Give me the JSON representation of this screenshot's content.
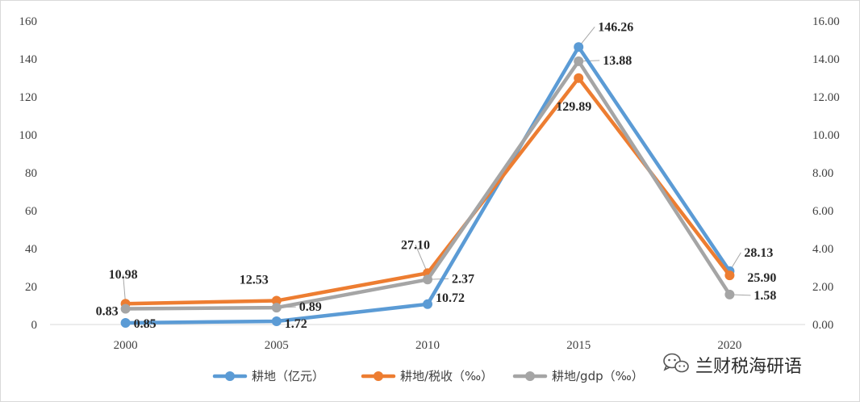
{
  "chart_data": {
    "type": "line",
    "categories": [
      "2000",
      "2005",
      "2010",
      "2015",
      "2020"
    ],
    "y_left": {
      "min": 0,
      "max": 160,
      "ticks": [
        "0",
        "20",
        "40",
        "60",
        "80",
        "100",
        "120",
        "140",
        "160"
      ]
    },
    "y_right": {
      "min": 0,
      "max": 16,
      "ticks": [
        "0.00",
        "2.00",
        "4.00",
        "6.00",
        "8.00",
        "10.00",
        "12.00",
        "14.00",
        "16.00"
      ]
    },
    "series": [
      {
        "name": "耕地（亿元）",
        "axis": "left",
        "color": "#5B9BD5",
        "values": [
          0.85,
          1.72,
          10.72,
          146.26,
          28.13
        ],
        "labels": [
          "0.85",
          "1.72",
          "10.72",
          "146.26",
          "28.13"
        ]
      },
      {
        "name": "耕地/税收（‰）",
        "axis": "left",
        "color": "#ED7D31",
        "values": [
          10.98,
          12.53,
          27.1,
          129.89,
          25.9
        ],
        "labels": [
          "10.98",
          "12.53",
          "27.10",
          "129.89",
          "25.90"
        ]
      },
      {
        "name": "耕地/gdp（‰）",
        "axis": "right",
        "color": "#A5A5A5",
        "values": [
          0.83,
          0.89,
          2.37,
          13.88,
          1.58
        ],
        "labels": [
          "0.83",
          "0.89",
          "2.37",
          "13.88",
          "1.58"
        ]
      }
    ],
    "legend_position": "bottom",
    "grid": false
  },
  "watermark": {
    "text": "兰财税海研语",
    "icon": "wechat-icon"
  }
}
